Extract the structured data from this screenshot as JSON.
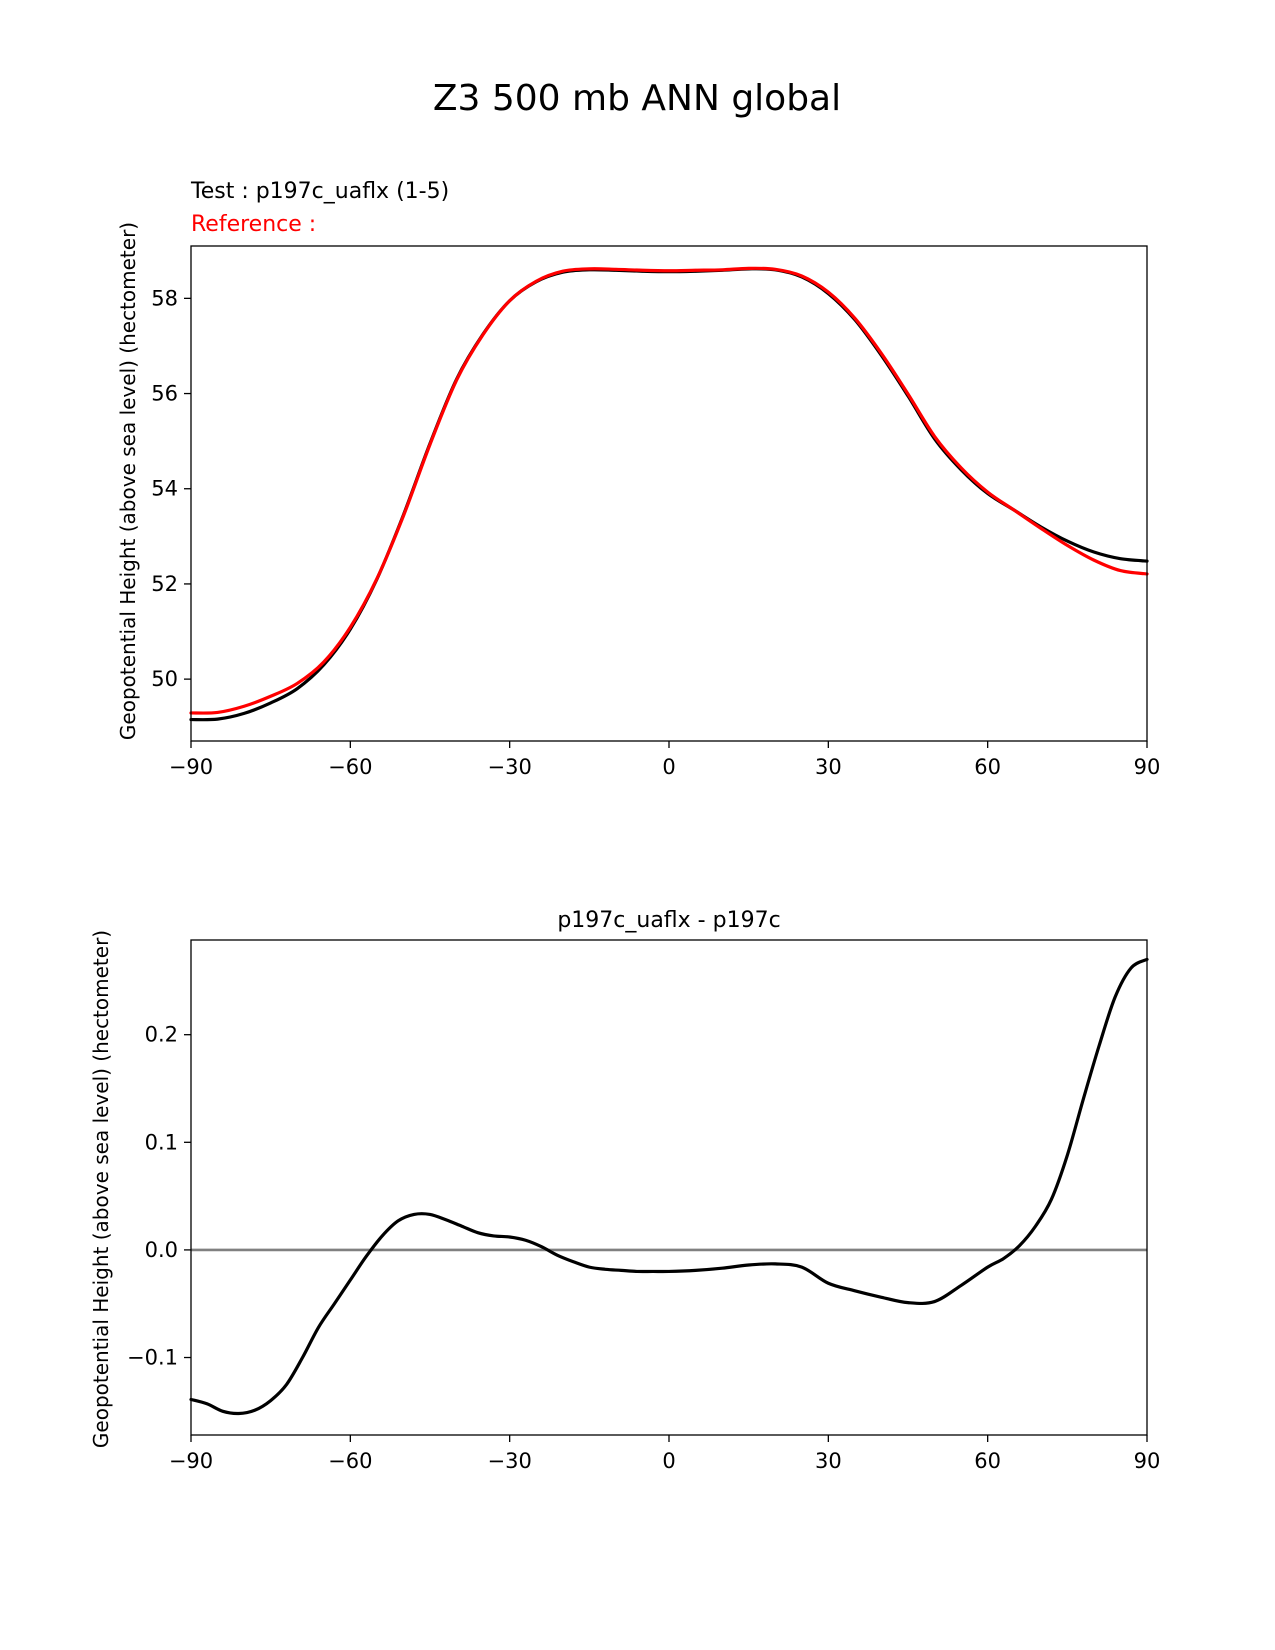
{
  "figure_title": "Z3 500 mb ANN global",
  "chart_data": [
    {
      "type": "line",
      "test_label": "Test : p197c_uaflx (1-5)",
      "reference_label": "Reference :",
      "ylabel": "Geopotential Height (above sea level) (hectometer)",
      "xlabel": "",
      "xlim": [
        -90,
        90
      ],
      "ylim": [
        48.7,
        59.1
      ],
      "xticks": [
        -90,
        -60,
        -30,
        0,
        30,
        60,
        90
      ],
      "xtick_labels": [
        "−90",
        "−60",
        "−30",
        "0",
        "30",
        "60",
        "90"
      ],
      "yticks": [
        50,
        52,
        54,
        56,
        58
      ],
      "ytick_labels": [
        "50",
        "52",
        "54",
        "56",
        "58"
      ],
      "series": [
        {
          "name": "test",
          "color": "#000000",
          "x": [
            -90,
            -85,
            -80,
            -75,
            -70,
            -65,
            -60,
            -55,
            -50,
            -45,
            -40,
            -35,
            -30,
            -25,
            -20,
            -15,
            -10,
            -5,
            0,
            5,
            10,
            15,
            20,
            25,
            30,
            35,
            40,
            45,
            50,
            55,
            60,
            65,
            70,
            75,
            80,
            85,
            90
          ],
          "y": [
            49.15,
            49.16,
            49.28,
            49.5,
            49.8,
            50.3,
            51.05,
            52.1,
            53.45,
            54.95,
            56.3,
            57.25,
            57.95,
            58.35,
            58.55,
            58.6,
            58.59,
            58.57,
            58.56,
            58.57,
            58.59,
            58.62,
            58.6,
            58.45,
            58.1,
            57.55,
            56.8,
            55.95,
            55.05,
            54.4,
            53.9,
            53.55,
            53.2,
            52.9,
            52.67,
            52.53,
            52.48
          ]
        },
        {
          "name": "reference",
          "color": "#ff0000",
          "x": [
            -90,
            -85,
            -80,
            -75,
            -70,
            -65,
            -60,
            -55,
            -50,
            -45,
            -40,
            -35,
            -30,
            -25,
            -20,
            -15,
            -10,
            -5,
            0,
            5,
            10,
            15,
            20,
            25,
            30,
            35,
            40,
            45,
            50,
            55,
            60,
            65,
            70,
            75,
            80,
            85,
            90
          ],
          "y": [
            49.29,
            49.3,
            49.43,
            49.64,
            49.91,
            50.36,
            51.09,
            52.11,
            53.43,
            54.93,
            56.28,
            57.24,
            57.95,
            58.36,
            58.57,
            58.62,
            58.61,
            58.59,
            58.58,
            58.59,
            58.6,
            58.63,
            58.61,
            58.47,
            58.13,
            57.58,
            56.84,
            55.99,
            55.1,
            54.44,
            53.93,
            53.55,
            53.17,
            52.81,
            52.5,
            52.28,
            52.21
          ]
        }
      ]
    },
    {
      "type": "line",
      "title": "p197c_uaflx - p197c",
      "ylabel": "Geopotential Height (above sea level) (hectometer)",
      "xlabel": "",
      "xlim": [
        -90,
        90
      ],
      "ylim": [
        -0.172,
        0.288
      ],
      "xticks": [
        -90,
        -60,
        -30,
        0,
        30,
        60,
        90
      ],
      "xtick_labels": [
        "−90",
        "−60",
        "−30",
        "0",
        "30",
        "60",
        "90"
      ],
      "yticks": [
        -0.1,
        0.0,
        0.1,
        0.2
      ],
      "ytick_labels": [
        "−0.1",
        "0.0",
        "0.1",
        "0.2"
      ],
      "zero_line_color": "#808080",
      "series": [
        {
          "name": "difference",
          "color": "#000000",
          "x": [
            -90,
            -87,
            -84,
            -81,
            -78,
            -75,
            -72,
            -69,
            -66,
            -63,
            -60,
            -57,
            -54,
            -51,
            -48,
            -45,
            -42,
            -39,
            -36,
            -33,
            -30,
            -27,
            -24,
            -21,
            -18,
            -15,
            -12,
            -9,
            -6,
            -3,
            0,
            5,
            10,
            15,
            20,
            25,
            30,
            35,
            40,
            45,
            50,
            55,
            60,
            63,
            66,
            69,
            72,
            75,
            78,
            81,
            84,
            87,
            90
          ],
          "y": [
            -0.139,
            -0.143,
            -0.15,
            -0.152,
            -0.149,
            -0.14,
            -0.125,
            -0.1,
            -0.072,
            -0.05,
            -0.028,
            -0.006,
            0.013,
            0.027,
            0.033,
            0.033,
            0.028,
            0.022,
            0.016,
            0.013,
            0.012,
            0.009,
            0.003,
            -0.005,
            -0.011,
            -0.016,
            -0.018,
            -0.019,
            -0.02,
            -0.02,
            -0.02,
            -0.019,
            -0.017,
            -0.014,
            -0.013,
            -0.016,
            -0.031,
            -0.038,
            -0.044,
            -0.049,
            -0.048,
            -0.033,
            -0.016,
            -0.008,
            0.004,
            0.022,
            0.047,
            0.088,
            0.14,
            0.19,
            0.235,
            0.262,
            0.27
          ]
        }
      ]
    }
  ]
}
